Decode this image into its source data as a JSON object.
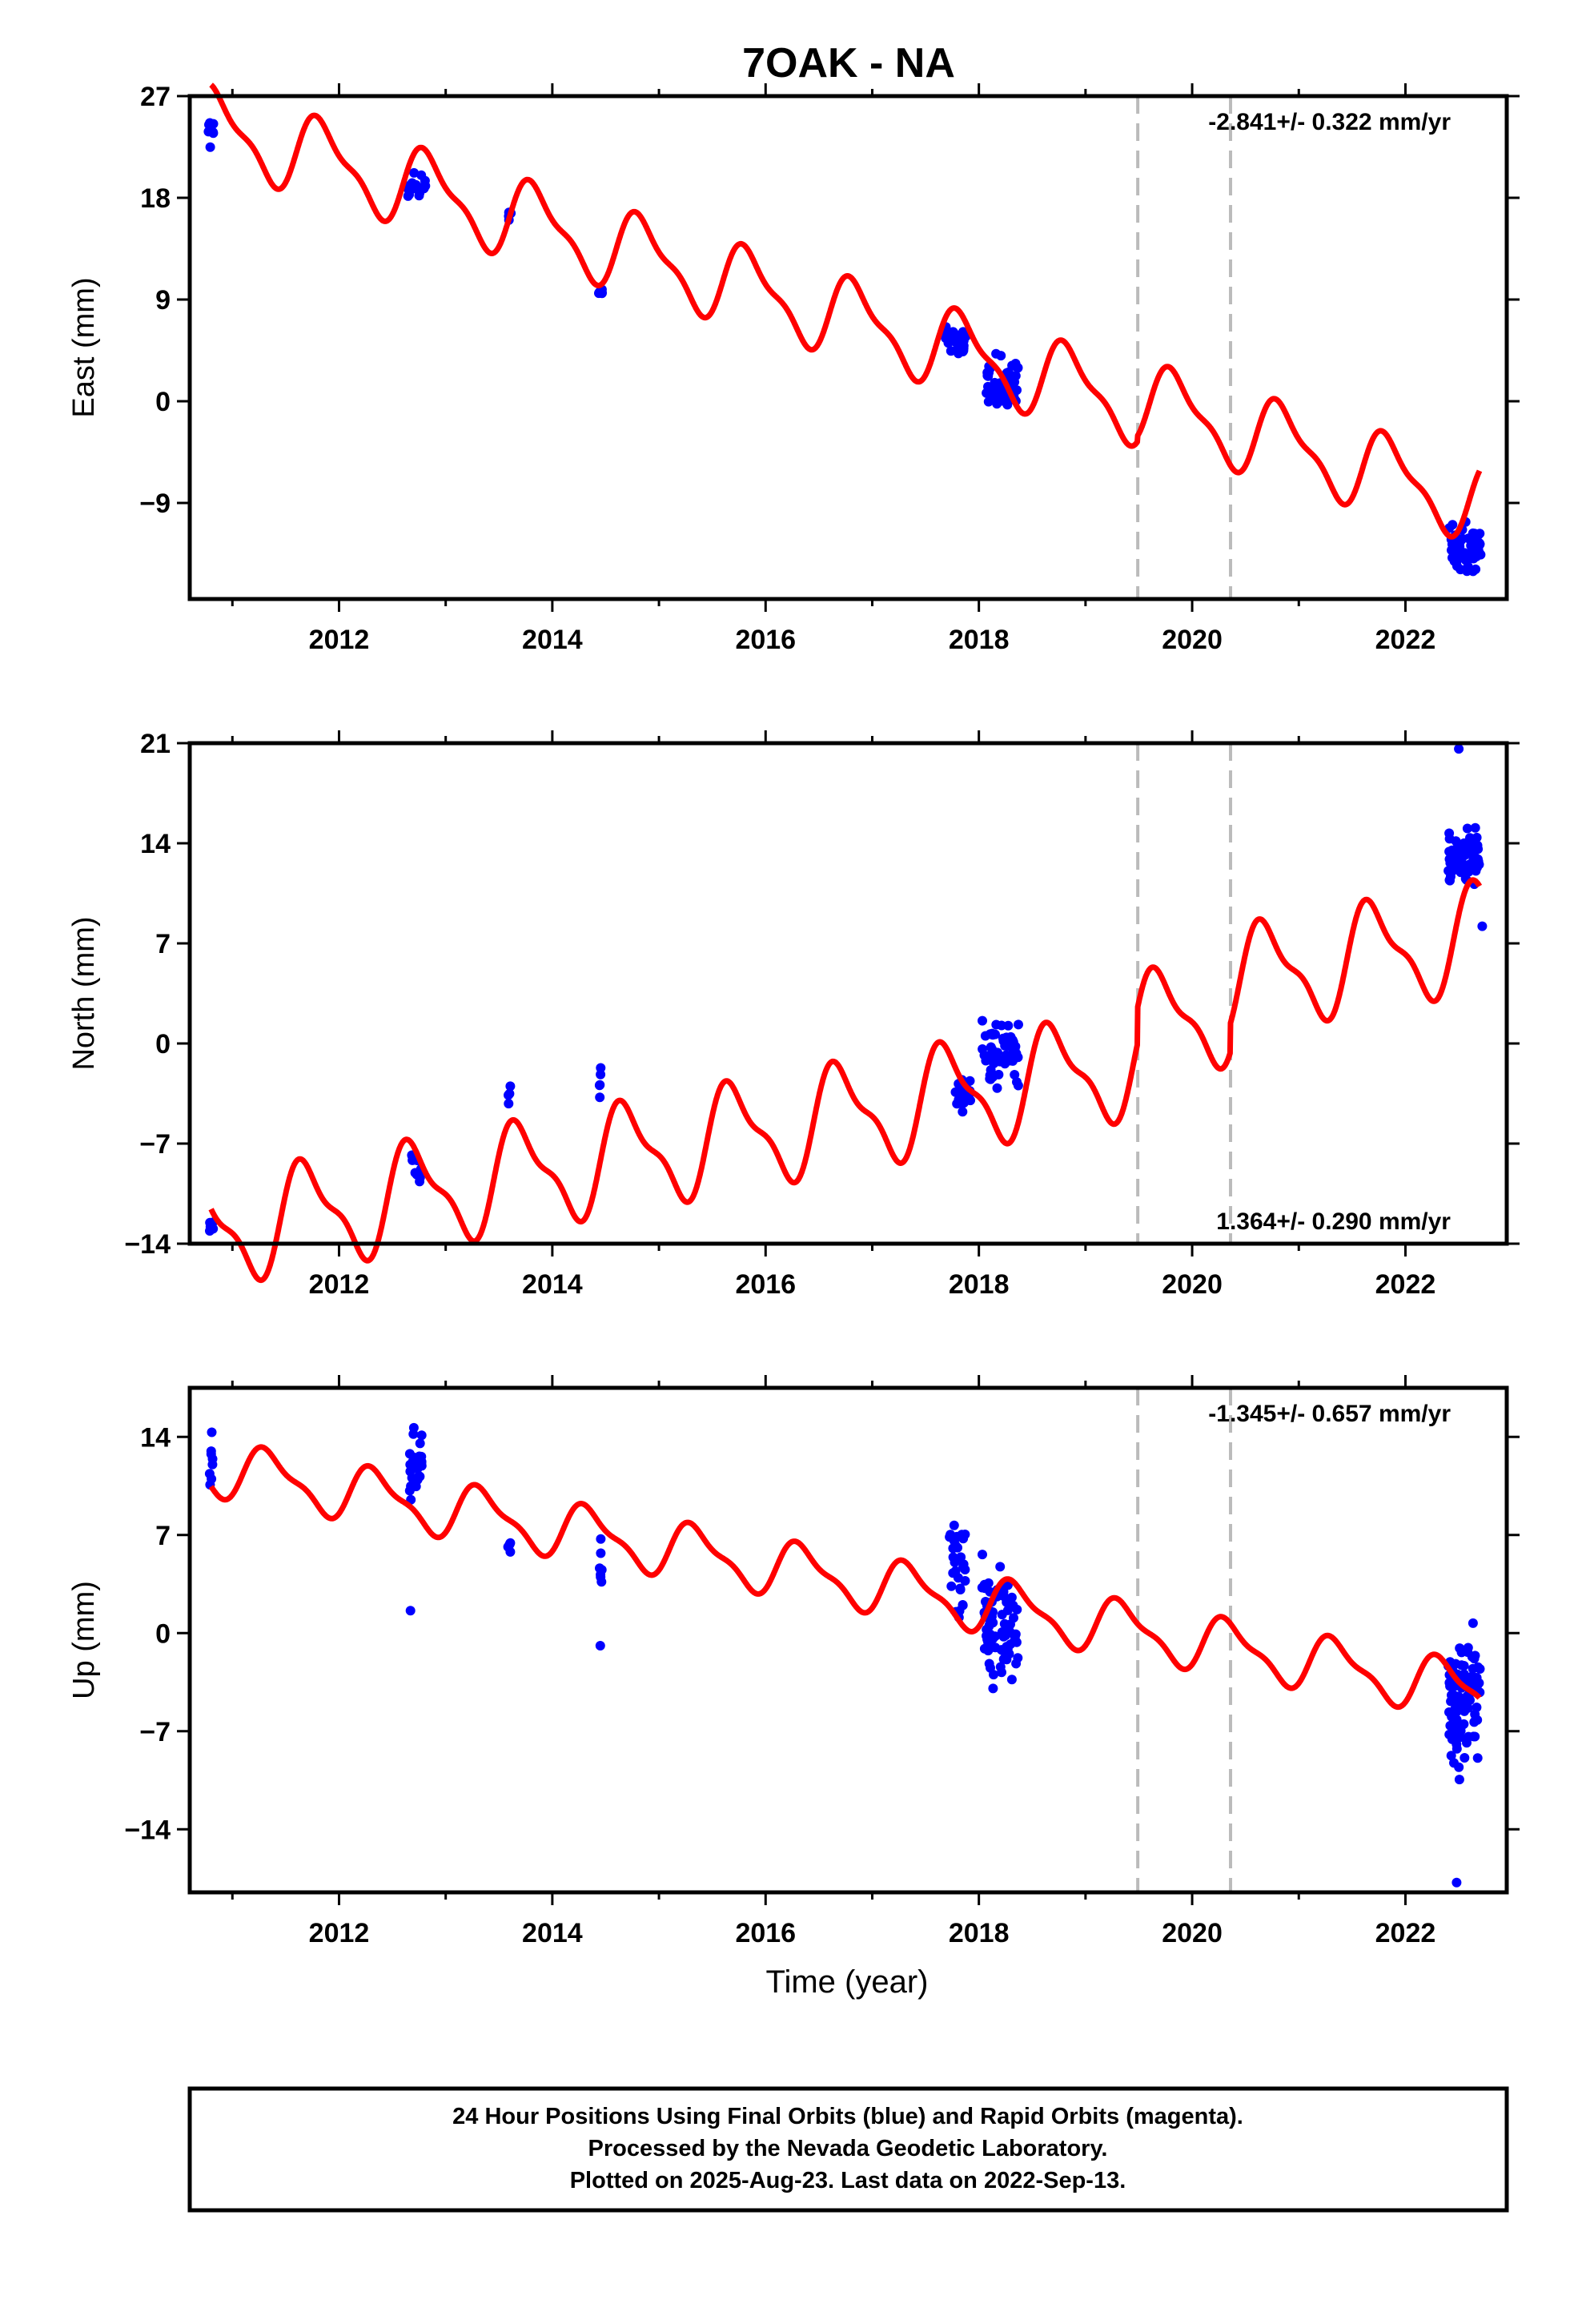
{
  "title": "7OAK - NA",
  "xlabel": "Time (year)",
  "x_ticks": [
    2012,
    2014,
    2016,
    2018,
    2020,
    2022
  ],
  "xlim": [
    2010.6,
    2022.95
  ],
  "vlines": [
    2019.49,
    2020.36
  ],
  "footer": {
    "line1": "24 Hour Positions Using Final Orbits (blue) and Rapid Orbits (magenta).",
    "line2": "Processed by the Nevada Geodetic Laboratory.",
    "line3": "Plotted on 2025-Aug-23. Last data on 2022-Sep-13."
  },
  "colors": {
    "data": "#0000ff",
    "model": "#ff0000",
    "vline": "#bbbbbb",
    "axis": "#000000"
  },
  "chart_data": [
    {
      "type": "scatter",
      "ylabel": "East (mm)",
      "rate": "-2.841+/- 0.322 mm/yr",
      "rate_position": "top-right",
      "ylim": [
        -17.5,
        27
      ],
      "y_ticks": [
        27,
        18,
        9,
        0,
        -9
      ],
      "model": {
        "trend_per_year": -2.841,
        "intercept_2010_8": 24.3,
        "annual_amp": 3.2,
        "annual_phase": 0.6,
        "steps": [
          {
            "t": 2019.49,
            "dy": 0.5
          },
          {
            "t": 2020.36,
            "dy": 0.0
          }
        ]
      },
      "data_clusters": [
        {
          "t": 2010.8,
          "width": 0.05,
          "center": 24,
          "spread": 2.2,
          "n": 8
        },
        {
          "t": 2012.72,
          "width": 0.18,
          "center": 19,
          "spread": 1.8,
          "n": 20
        },
        {
          "t": 2013.6,
          "width": 0.04,
          "center": 16.5,
          "spread": 0.8,
          "n": 4
        },
        {
          "t": 2014.45,
          "width": 0.04,
          "center": 9.5,
          "spread": 1,
          "n": 5
        },
        {
          "t": 2017.78,
          "width": 0.2,
          "center": 5.5,
          "spread": 1.6,
          "n": 30
        },
        {
          "t": 2018.22,
          "width": 0.3,
          "center": 1.5,
          "spread": 3.2,
          "n": 60
        },
        {
          "t": 2022.56,
          "width": 0.3,
          "center": -13,
          "spread": 3.2,
          "n": 70
        }
      ]
    },
    {
      "type": "scatter",
      "ylabel": "North (mm)",
      "rate": "1.364+/- 0.290 mm/yr",
      "rate_position": "bottom-right",
      "ylim": [
        -14,
        21
      ],
      "y_ticks": [
        21,
        14,
        7,
        0,
        -7,
        -14
      ],
      "model": {
        "trend_per_year": 1.364,
        "intercept_2010_8": -13.2,
        "annual_amp": 3.4,
        "annual_phase": 0.45,
        "steps": [
          {
            "t": 2019.49,
            "dy": 2.5
          },
          {
            "t": 2020.36,
            "dy": 2.0
          }
        ]
      },
      "data_clusters": [
        {
          "t": 2010.8,
          "width": 0.04,
          "center": -12.8,
          "spread": 0.9,
          "n": 6
        },
        {
          "t": 2012.72,
          "width": 0.1,
          "center": -8.5,
          "spread": 2,
          "n": 14
        },
        {
          "t": 2013.6,
          "width": 0.03,
          "center": -3.6,
          "spread": 1.2,
          "n": 4
        },
        {
          "t": 2014.45,
          "width": 0.03,
          "center": -2.4,
          "spread": 2,
          "n": 5
        },
        {
          "t": 2017.85,
          "width": 0.15,
          "center": -3.5,
          "spread": 1.6,
          "n": 25
        },
        {
          "t": 2018.2,
          "width": 0.35,
          "center": -1,
          "spread": 3,
          "n": 60
        },
        {
          "t": 2022.55,
          "width": 0.3,
          "center": 13,
          "spread": 2.6,
          "n": 70
        }
      ],
      "outliers": [
        {
          "t": 2022.5,
          "y": 20.6
        },
        {
          "t": 2022.72,
          "y": 8.2
        }
      ]
    },
    {
      "type": "scatter",
      "ylabel": "Up (mm)",
      "rate": "-1.345+/- 0.657 mm/yr",
      "rate_position": "top-right",
      "ylim": [
        -18.5,
        17.5
      ],
      "y_ticks": [
        14,
        7,
        0,
        -7,
        -14
      ],
      "model": {
        "trend_per_year": -1.345,
        "intercept_2010_8": 11.8,
        "annual_amp": 1.8,
        "annual_phase": 0.1,
        "steps": [
          {
            "t": 2019.49,
            "dy": 0.0
          },
          {
            "t": 2020.36,
            "dy": 0.0
          }
        ]
      },
      "data_clusters": [
        {
          "t": 2010.8,
          "width": 0.03,
          "center": 12.5,
          "spread": 3.5,
          "n": 8
        },
        {
          "t": 2012.72,
          "width": 0.12,
          "center": 12,
          "spread": 4,
          "n": 30
        },
        {
          "t": 2013.6,
          "width": 0.03,
          "center": 6.5,
          "spread": 2.5,
          "n": 5
        },
        {
          "t": 2014.45,
          "width": 0.03,
          "center": 4.5,
          "spread": 3.5,
          "n": 7
        },
        {
          "t": 2017.8,
          "width": 0.15,
          "center": 4.5,
          "spread": 5,
          "n": 30
        },
        {
          "t": 2018.2,
          "width": 0.35,
          "center": 0.5,
          "spread": 5.5,
          "n": 80
        },
        {
          "t": 2022.55,
          "width": 0.3,
          "center": -5,
          "spread": 7,
          "n": 90
        }
      ],
      "outliers": [
        {
          "t": 2012.67,
          "y": 1.6
        },
        {
          "t": 2014.45,
          "y": -0.9
        },
        {
          "t": 2022.48,
          "y": -17.8
        }
      ]
    }
  ]
}
